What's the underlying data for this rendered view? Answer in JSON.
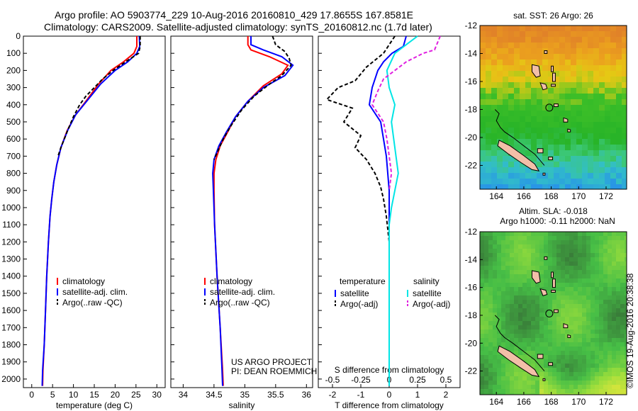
{
  "header": {
    "line1": "Argo profile: AO 5903774_229 10-Aug-2016 20160810_429 17.8655S 167.8581E",
    "line2": "Climatology: CARS2009. Satellite-adjusted climatology: synTS_20160812.nc (1.7d later)"
  },
  "colors": {
    "climatology": "#ff0000",
    "satellite": "#0000ff",
    "argo": "#000000",
    "sal_satellite": "#00e5e5",
    "sal_argo": "#e020e0"
  },
  "chart_data": [
    {
      "type": "line",
      "xlabel": "temperature (deg C)",
      "ylabel": "",
      "xlim": [
        -2,
        32
      ],
      "ylim": [
        2050,
        0
      ],
      "xticks": [
        0,
        5,
        10,
        15,
        20,
        25,
        30
      ],
      "yticks": [
        0,
        100,
        200,
        300,
        400,
        500,
        600,
        700,
        800,
        900,
        1000,
        1100,
        1200,
        1300,
        1400,
        1500,
        1600,
        1700,
        1800,
        1900,
        2000
      ],
      "legend": {
        "position": "bottom-right",
        "entries": [
          "climatology",
          "satellite-adj. clim.",
          "Argo(..raw -QC)"
        ]
      },
      "series": [
        {
          "name": "climatology",
          "style": "solid",
          "color_key": "climatology",
          "points": [
            [
              25.2,
              0
            ],
            [
              25.2,
              60
            ],
            [
              24.5,
              100
            ],
            [
              22,
              150
            ],
            [
              19,
              200
            ],
            [
              16,
              280
            ],
            [
              13,
              380
            ],
            [
              10.5,
              460
            ],
            [
              8.5,
              550
            ],
            [
              7,
              650
            ],
            [
              6,
              750
            ],
            [
              5.3,
              850
            ],
            [
              4.8,
              950
            ],
            [
              4.4,
              1050
            ],
            [
              4.0,
              1200
            ],
            [
              3.6,
              1400
            ],
            [
              3.3,
              1600
            ],
            [
              3.0,
              1800
            ],
            [
              2.7,
              1950
            ],
            [
              2.6,
              2040
            ]
          ]
        },
        {
          "name": "satellite-adj. clim.",
          "style": "solid",
          "color_key": "satellite",
          "points": [
            [
              25.8,
              0
            ],
            [
              25.9,
              60
            ],
            [
              25.2,
              100
            ],
            [
              23,
              150
            ],
            [
              20,
              200
            ],
            [
              16.5,
              280
            ],
            [
              13.5,
              370
            ],
            [
              10.5,
              460
            ],
            [
              8.6,
              550
            ],
            [
              7,
              650
            ],
            [
              6,
              750
            ],
            [
              5.3,
              850
            ],
            [
              4.8,
              950
            ],
            [
              4.4,
              1050
            ],
            [
              4.0,
              1200
            ],
            [
              3.6,
              1400
            ],
            [
              3.3,
              1600
            ],
            [
              3.0,
              1800
            ],
            [
              2.6,
              1950
            ],
            [
              2.5,
              2040
            ]
          ]
        },
        {
          "name": "Argo(..raw -QC)",
          "style": "dashed",
          "color_key": "argo",
          "points": [
            [
              26,
              0
            ],
            [
              26,
              60
            ],
            [
              25.6,
              100
            ],
            [
              22.5,
              150
            ],
            [
              19.5,
              200
            ],
            [
              17,
              250
            ],
            [
              15,
              300
            ],
            [
              13,
              350
            ],
            [
              11.5,
              400
            ],
            [
              10,
              470
            ],
            [
              8.6,
              550
            ],
            [
              7,
              650
            ],
            [
              6.3,
              700
            ]
          ]
        }
      ]
    },
    {
      "type": "line",
      "xlabel": "salinity",
      "ylabel": "",
      "xlim": [
        33.8,
        36.1
      ],
      "ylim": [
        2050,
        0
      ],
      "xticks": [
        34,
        34.5,
        35,
        35.5,
        36
      ],
      "yticks": [
        0,
        100,
        200,
        300,
        400,
        500,
        600,
        700,
        800,
        900,
        1000,
        1100,
        1200,
        1300,
        1400,
        1500,
        1600,
        1700,
        1800,
        1900,
        2000
      ],
      "legend": {
        "position": "bottom-right",
        "entries": [
          "climatology",
          "satellite-adj. clim.",
          "Argo(..raw -QC)"
        ]
      },
      "annotation": [
        "US ARGO PROJECT",
        "PI: DEAN ROEMMICH"
      ],
      "series": [
        {
          "name": "climatology",
          "style": "solid",
          "color_key": "climatology",
          "points": [
            [
              35.05,
              0
            ],
            [
              35.05,
              50
            ],
            [
              35.1,
              80
            ],
            [
              35.4,
              120
            ],
            [
              35.7,
              170
            ],
            [
              35.6,
              220
            ],
            [
              35.3,
              290
            ],
            [
              35.05,
              380
            ],
            [
              34.85,
              470
            ],
            [
              34.72,
              560
            ],
            [
              34.6,
              640
            ],
            [
              34.53,
              720
            ],
            [
              34.5,
              800
            ],
            [
              34.5,
              900
            ],
            [
              34.51,
              1100
            ],
            [
              34.55,
              1400
            ],
            [
              34.6,
              1700
            ],
            [
              34.64,
              1950
            ],
            [
              34.65,
              2040
            ]
          ]
        },
        {
          "name": "satellite-adj. clim.",
          "style": "solid",
          "color_key": "satellite",
          "points": [
            [
              35.1,
              0
            ],
            [
              35.1,
              50
            ],
            [
              35.3,
              80
            ],
            [
              35.6,
              120
            ],
            [
              35.78,
              170
            ],
            [
              35.65,
              230
            ],
            [
              35.3,
              300
            ],
            [
              35.05,
              380
            ],
            [
              34.85,
              470
            ],
            [
              34.7,
              560
            ],
            [
              34.58,
              640
            ],
            [
              34.5,
              720
            ],
            [
              34.48,
              800
            ],
            [
              34.49,
              900
            ],
            [
              34.51,
              1100
            ],
            [
              34.55,
              1400
            ],
            [
              34.6,
              1700
            ],
            [
              34.63,
              1950
            ],
            [
              34.64,
              2040
            ]
          ]
        },
        {
          "name": "Argo(..raw -QC)",
          "style": "dashed",
          "color_key": "argo",
          "points": [
            [
              35.45,
              0
            ],
            [
              35.5,
              50
            ],
            [
              35.65,
              90
            ],
            [
              35.72,
              130
            ],
            [
              35.75,
              170
            ],
            [
              35.6,
              230
            ],
            [
              35.4,
              280
            ],
            [
              35.15,
              350
            ],
            [
              34.95,
              430
            ],
            [
              34.78,
              520
            ],
            [
              34.65,
              600
            ],
            [
              34.55,
              680
            ],
            [
              34.5,
              720
            ]
          ]
        }
      ]
    },
    {
      "type": "line",
      "xlabel": "T difference from climatology",
      "x2label": "S difference from climatology",
      "ylabel": "",
      "xlim": [
        -2.5,
        2.5
      ],
      "x2lim": [
        -0.625,
        0.625
      ],
      "ylim": [
        2050,
        0
      ],
      "xticks": [
        -2,
        -1,
        0,
        1,
        2
      ],
      "x2ticks": [
        -0.5,
        -0.25,
        0,
        0.25,
        0.5
      ],
      "legend": {
        "position": "bottom",
        "temp_title": "temperature",
        "sal_title": "salinity",
        "entries": [
          "satellite",
          "Argo(-adj)",
          "satellite",
          "Argo(-adj)"
        ]
      },
      "series": [
        {
          "name": "satellite",
          "group": "temperature",
          "axis": "T",
          "style": "solid",
          "color_key": "satellite",
          "points": [
            [
              0.6,
              0
            ],
            [
              0.5,
              60
            ],
            [
              0.1,
              100
            ],
            [
              -0.2,
              150
            ],
            [
              -0.4,
              200
            ],
            [
              -0.6,
              300
            ],
            [
              -0.7,
              400
            ],
            [
              -0.3,
              500
            ],
            [
              -0.2,
              600
            ],
            [
              -0.1,
              700
            ],
            [
              -0.05,
              800
            ],
            [
              0,
              900
            ],
            [
              0,
              1000
            ],
            [
              0,
              1500
            ],
            [
              0,
              2040
            ]
          ]
        },
        {
          "name": "Argo(-adj)",
          "group": "temperature",
          "axis": "T",
          "style": "dashed",
          "color_key": "argo",
          "points": [
            [
              0.2,
              0
            ],
            [
              -0.2,
              100
            ],
            [
              -0.8,
              180
            ],
            [
              -1.2,
              260
            ],
            [
              -1.8,
              300
            ],
            [
              -2.2,
              370
            ],
            [
              -1.3,
              420
            ],
            [
              -1.6,
              500
            ],
            [
              -1.0,
              580
            ],
            [
              -1.2,
              650
            ],
            [
              -0.8,
              720
            ],
            [
              -0.5,
              800
            ],
            [
              -0.3,
              880
            ],
            [
              -0.2,
              950
            ],
            [
              -0.1,
              1050
            ],
            [
              0,
              1200
            ]
          ]
        },
        {
          "name": "satellite",
          "group": "salinity",
          "axis": "S",
          "style": "solid",
          "color_key": "sal_satellite",
          "points": [
            [
              0.25,
              0
            ],
            [
              0.15,
              50
            ],
            [
              0.05,
              100
            ],
            [
              -0.02,
              200
            ],
            [
              0,
              300
            ],
            [
              0.05,
              400
            ],
            [
              0.02,
              500
            ],
            [
              0.04,
              600
            ],
            [
              0.06,
              700
            ],
            [
              0.08,
              800
            ],
            [
              0.05,
              900
            ],
            [
              0.02,
              1000
            ],
            [
              0,
              1100
            ],
            [
              0,
              2040
            ]
          ]
        },
        {
          "name": "Argo(-adj)",
          "group": "salinity",
          "axis": "S",
          "style": "dashed",
          "color_key": "sal_argo",
          "points": [
            [
              0.45,
              0
            ],
            [
              0.4,
              80
            ],
            [
              0.3,
              100
            ],
            [
              0.15,
              150
            ],
            [
              0.05,
              200
            ],
            [
              -0.05,
              250
            ],
            [
              -0.1,
              320
            ],
            [
              -0.15,
              400
            ],
            [
              -0.05,
              500
            ],
            [
              -0.02,
              600
            ],
            [
              0,
              700
            ],
            [
              0.02,
              800
            ],
            [
              0,
              900
            ]
          ]
        }
      ]
    }
  ],
  "maps": [
    {
      "title": "sat. SST: 26 Argo: 26",
      "subtitle": [],
      "xlim": [
        162.8,
        173.5
      ],
      "ylim": [
        -23.7,
        -12
      ],
      "xticks": [
        164,
        166,
        168,
        170,
        172
      ],
      "yticks": [
        -12,
        -14,
        -16,
        -18,
        -20,
        -22
      ],
      "palette": "sst",
      "float": [
        167.86,
        -17.87
      ]
    },
    {
      "title": "Altim. SLA: -0.018",
      "subtitle": [
        "Argo h1000: -0.11 h2000: NaN"
      ],
      "xlim": [
        162.8,
        173.5
      ],
      "ylim": [
        -23.7,
        -12
      ],
      "xticks": [
        164,
        166,
        168,
        170,
        172
      ],
      "yticks": [
        -12,
        -14,
        -16,
        -18,
        -20,
        -22
      ],
      "palette": "sla",
      "float": [
        167.86,
        -17.87
      ]
    }
  ],
  "credit": "©IMOS 19-Aug-2016 20:38:38"
}
